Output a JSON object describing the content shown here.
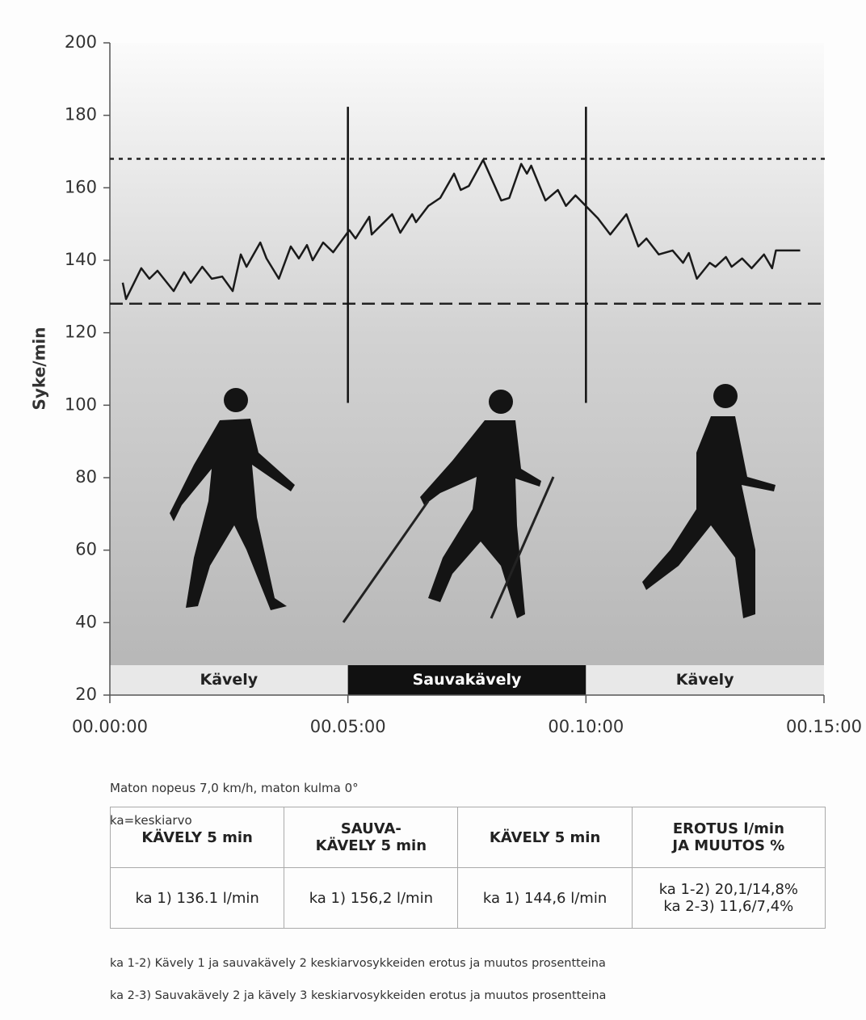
{
  "chart_data": {
    "type": "line",
    "y_label": "Syke/min",
    "ylim": [
      20,
      200
    ],
    "yticks": [
      20,
      40,
      60,
      80,
      100,
      120,
      140,
      160,
      180,
      200
    ],
    "xlim": [
      0,
      15
    ],
    "xticks": [
      {
        "value": 0,
        "label": "00.00:00"
      },
      {
        "value": 5,
        "label": "00.05:00"
      },
      {
        "value": 10,
        "label": "00.10:00"
      },
      {
        "value": 15,
        "label": "00.15:00"
      }
    ],
    "x": [
      0.27,
      0.34,
      0.66,
      0.83,
      1.0,
      1.34,
      1.56,
      1.7,
      1.94,
      2.14,
      2.36,
      2.58,
      2.75,
      2.87,
      3.16,
      3.29,
      3.55,
      3.8,
      3.97,
      4.14,
      4.26,
      4.48,
      4.69,
      5.03,
      5.16,
      5.45,
      5.5,
      5.93,
      6.1,
      6.35,
      6.43,
      6.69,
      6.94,
      7.23,
      7.37,
      7.54,
      7.84,
      8.22,
      8.39,
      8.64,
      8.76,
      8.85,
      9.15,
      9.41,
      9.58,
      9.78,
      10.25,
      10.51,
      10.85,
      11.1,
      11.27,
      11.53,
      11.82,
      12.04,
      12.16,
      12.33,
      12.6,
      12.72,
      12.94,
      13.06,
      13.28,
      13.48,
      13.74,
      13.91,
      13.99,
      14.24,
      14.5
    ],
    "series": [
      {
        "color": "#1a1a1a",
        "values": [
          133.8,
          129.3,
          137.8,
          134.9,
          137.1,
          131.5,
          136.7,
          133.8,
          138.2,
          134.9,
          135.5,
          131.5,
          141.6,
          138.2,
          144.9,
          140.5,
          134.9,
          143.8,
          140.5,
          144.2,
          140.0,
          144.9,
          142.2,
          148.3,
          146.0,
          152.0,
          147.1,
          152.7,
          147.6,
          152.7,
          150.5,
          155.0,
          157.2,
          163.9,
          159.4,
          160.5,
          167.7,
          156.5,
          157.2,
          166.6,
          163.9,
          166.1,
          156.5,
          159.4,
          155.0,
          157.9,
          151.6,
          147.1,
          152.7,
          143.8,
          146.0,
          141.6,
          142.7,
          139.3,
          142.0,
          134.9,
          139.3,
          138.2,
          140.9,
          138.2,
          140.5,
          137.8,
          141.6,
          137.8,
          142.7,
          142.7,
          142.7
        ]
      }
    ],
    "reference_lines": [
      {
        "value": 168,
        "style": "dotted"
      },
      {
        "value": 128,
        "style": "dashed"
      }
    ],
    "dividers": [
      5,
      10
    ],
    "phases": [
      {
        "label": "Kävely",
        "start": 0,
        "end": 5,
        "color": "#e8e8e8"
      },
      {
        "label": "Sauvakävely",
        "start": 5,
        "end": 10,
        "color": "#111111"
      },
      {
        "label": "Kävely",
        "start": 10,
        "end": 15,
        "color": "#e8e8e8"
      }
    ]
  },
  "notes": [
    "Maton nopeus 7,0 km/h, maton kulma 0°",
    "ka=keskiarvo"
  ],
  "table": {
    "header": [
      "KÄVELY 5 min",
      "SAUVA-\nKÄVELY 5 min",
      "KÄVELY 5 min",
      "EROTUS l/min\nJA MUUTOS %"
    ],
    "rows": [
      [
        "ka 1) 136.1 l/min",
        "ka 1) 156,2 l/min",
        "ka 1) 144,6 l/min",
        "ka 1-2) 20,1/14,8%\nka 2-3) 11,6/7,4%"
      ]
    ]
  },
  "footnotes": [
    "ka 1-2) Kävely 1 ja sauvakävely 2 keskiarvosykkeiden erotus ja muutos prosentteina",
    "ka 2-3) Sauvakävely 2 ja kävely 3 keskiarvosykkeiden erotus ja muutos prosentteina"
  ]
}
